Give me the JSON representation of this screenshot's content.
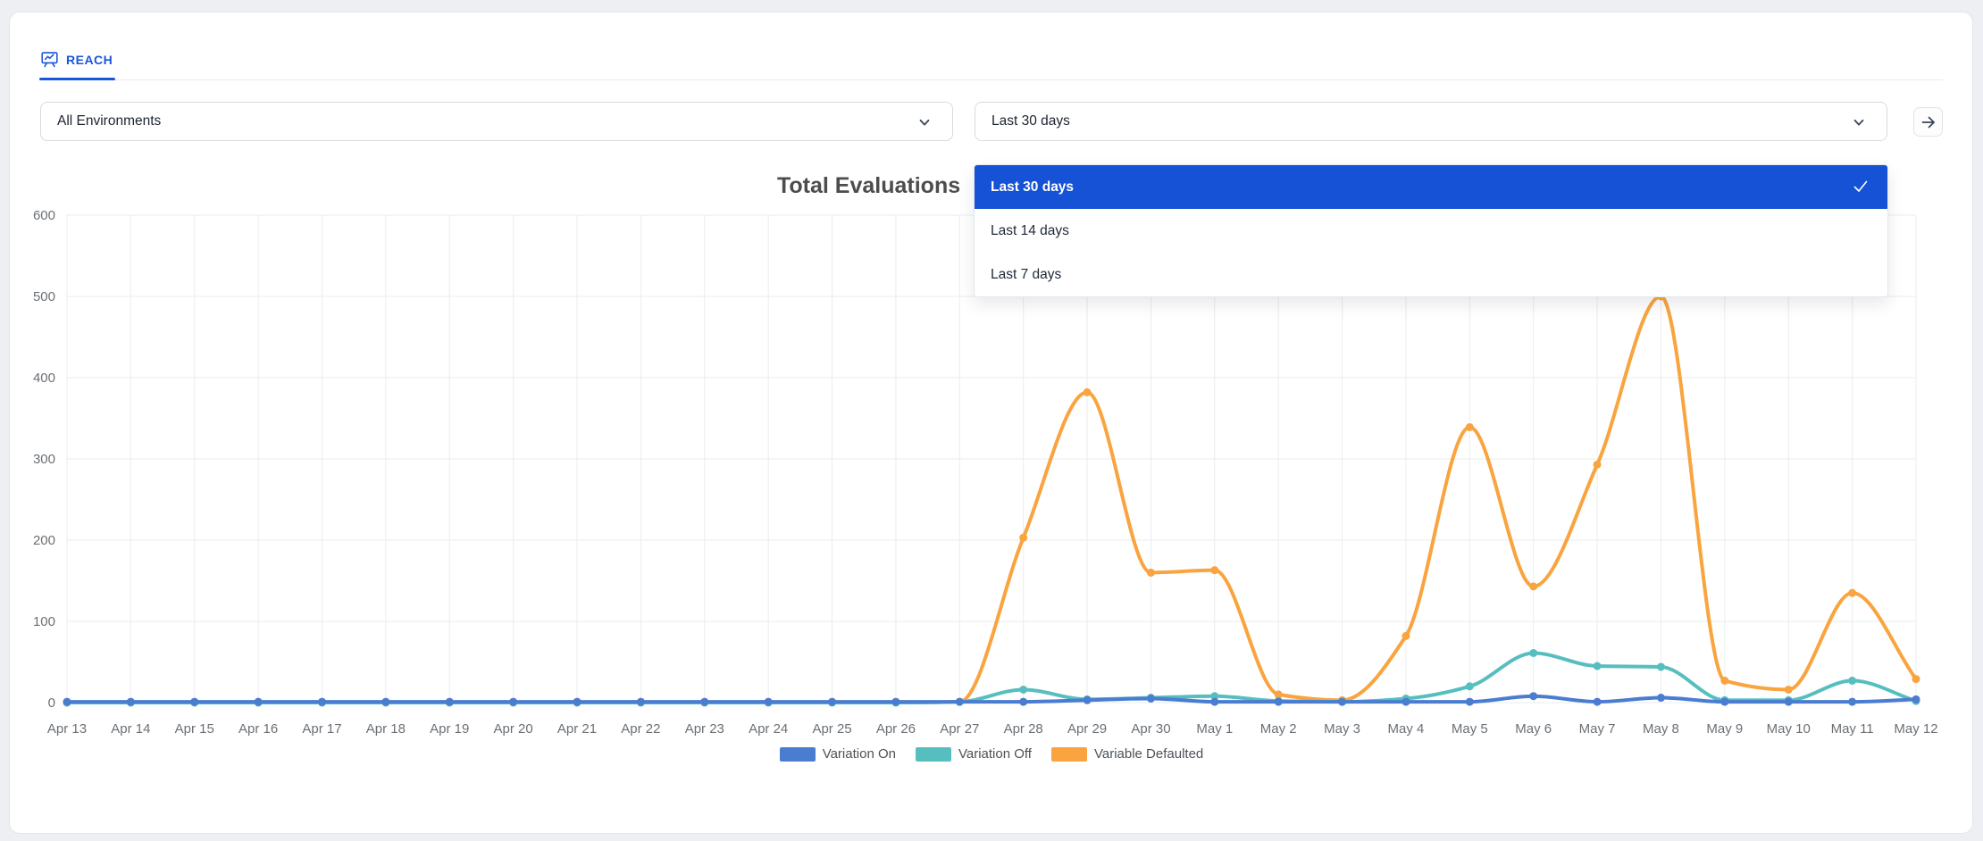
{
  "colors": {
    "accent_blue": "#1a56db",
    "menu_selected_bg": "#1652d6",
    "page_bg": "#edeff2",
    "grid_line": "#eaecee"
  },
  "tabs": {
    "reach": {
      "label": "REACH"
    }
  },
  "filters": {
    "environment": {
      "value": "All Environments"
    },
    "date_range": {
      "value": "Last 30 days",
      "options": [
        {
          "label": "Last 30 days",
          "selected": true
        },
        {
          "label": "Last 14 days",
          "selected": false
        },
        {
          "label": "Last 7 days",
          "selected": false
        }
      ]
    }
  },
  "chart_data": {
    "type": "line",
    "title": "Total Evaluations",
    "categories": [
      "Apr 13",
      "Apr 14",
      "Apr 15",
      "Apr 16",
      "Apr 17",
      "Apr 18",
      "Apr 19",
      "Apr 20",
      "Apr 21",
      "Apr 22",
      "Apr 23",
      "Apr 24",
      "Apr 25",
      "Apr 26",
      "Apr 27",
      "Apr 28",
      "Apr 29",
      "Apr 30",
      "May 1",
      "May 2",
      "May 3",
      "May 4",
      "May 5",
      "May 6",
      "May 7",
      "May 8",
      "May 9",
      "May 10",
      "May 11",
      "May 12"
    ],
    "series": [
      {
        "name": "Variation On",
        "color": "#4a7cd0",
        "values": [
          1,
          1,
          1,
          1,
          1,
          1,
          1,
          1,
          1,
          1,
          1,
          1,
          1,
          1,
          1,
          1,
          3,
          5,
          1,
          1,
          1,
          1,
          1,
          8,
          1,
          6,
          1,
          1,
          1,
          4
        ]
      },
      {
        "name": "Variation Off",
        "color": "#57bec0",
        "values": [
          0,
          0,
          0,
          0,
          0,
          0,
          0,
          0,
          0,
          0,
          0,
          0,
          0,
          0,
          1,
          16,
          4,
          6,
          8,
          2,
          1,
          5,
          20,
          61,
          45,
          44,
          3,
          3,
          27,
          2
        ]
      },
      {
        "name": "Variable Defaulted",
        "color": "#f9a43e",
        "values": [
          0,
          0,
          0,
          0,
          0,
          0,
          0,
          0,
          0,
          0,
          0,
          0,
          0,
          0,
          1,
          203,
          382,
          160,
          163,
          10,
          3,
          82,
          339,
          143,
          293,
          500,
          27,
          16,
          135,
          29
        ]
      }
    ],
    "xlabel": "",
    "ylabel": "",
    "ylim": [
      0,
      600
    ],
    "yticks": [
      0,
      100,
      200,
      300,
      400,
      500,
      600
    ],
    "grid": true,
    "legend_position": "bottom"
  }
}
